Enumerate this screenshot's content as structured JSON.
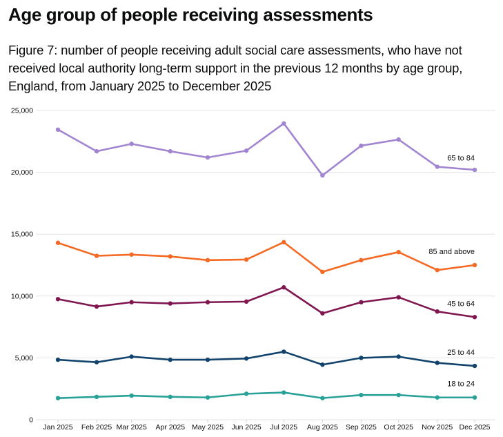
{
  "header": {
    "title": "Age group of people receiving assessments",
    "subtitle": "Figure 7: number of people receiving adult social care assessments, who have not received local authority long-term support in the previous 12 months by age group, England, from January 2025 to December 2025"
  },
  "chart_data": {
    "type": "line",
    "title": "Age group of people receiving assessments",
    "subtitle": "Figure 7: number of people receiving adult social care assessments, who have not received local authority long-term support in the previous 12 months by age group, England, from January 2025 to December 2025",
    "xlabel": "",
    "ylabel": "",
    "x": [
      "Jan 2025",
      "Feb 2025",
      "Mar 2025",
      "Apr 2025",
      "May 2025",
      "Jun 2025",
      "Jul 2025",
      "Aug 2025",
      "Sep 2025",
      "Oct 2025",
      "Nov 2025",
      "Dec 2025"
    ],
    "x_dates": [
      "2025-01-01",
      "2025-02-01",
      "2025-03-01",
      "2025-04-01",
      "2025-05-01",
      "2025-06-01",
      "2025-07-01",
      "2025-08-01",
      "2025-09-01",
      "2025-10-01",
      "2025-11-01",
      "2025-12-01"
    ],
    "ylim": [
      0,
      25000
    ],
    "yticks": [
      0,
      5000,
      10000,
      15000,
      20000,
      25000
    ],
    "ytick_labels": [
      "0",
      "5,000",
      "10,000",
      "15,000",
      "20,000",
      "25,000"
    ],
    "grid": true,
    "legend": "direct-labels-right",
    "series": [
      {
        "name": "65 to 84",
        "color": "#a285d1",
        "values": [
          23450,
          21700,
          22300,
          21700,
          21200,
          21750,
          23950,
          19750,
          22150,
          22650,
          20450,
          20200
        ]
      },
      {
        "name": "85 and above",
        "color": "#f46a25",
        "values": [
          14300,
          13250,
          13350,
          13200,
          12900,
          12950,
          14350,
          11950,
          12900,
          13550,
          12100,
          12500
        ]
      },
      {
        "name": "45 to 64",
        "color": "#801650",
        "values": [
          9750,
          9150,
          9500,
          9400,
          9500,
          9550,
          10700,
          8600,
          9500,
          9900,
          8750,
          8300
        ]
      },
      {
        "name": "25 to 44",
        "color": "#12436d",
        "values": [
          4850,
          4650,
          5100,
          4850,
          4850,
          4950,
          5500,
          4450,
          5000,
          5100,
          4600,
          4350
        ]
      },
      {
        "name": "18 to 24",
        "color": "#28a197",
        "values": [
          1750,
          1850,
          1950,
          1850,
          1800,
          2100,
          2200,
          1750,
          2000,
          2000,
          1800,
          1800
        ]
      }
    ]
  }
}
